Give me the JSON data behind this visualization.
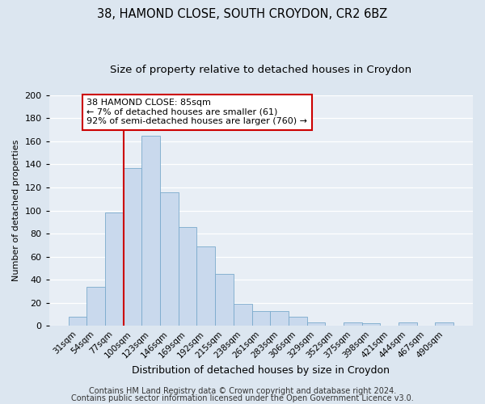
{
  "title": "38, HAMOND CLOSE, SOUTH CROYDON, CR2 6BZ",
  "subtitle": "Size of property relative to detached houses in Croydon",
  "xlabel": "Distribution of detached houses by size in Croydon",
  "ylabel": "Number of detached properties",
  "bar_labels": [
    "31sqm",
    "54sqm",
    "77sqm",
    "100sqm",
    "123sqm",
    "146sqm",
    "169sqm",
    "192sqm",
    "215sqm",
    "238sqm",
    "261sqm",
    "283sqm",
    "306sqm",
    "329sqm",
    "352sqm",
    "375sqm",
    "398sqm",
    "421sqm",
    "444sqm",
    "467sqm",
    "490sqm"
  ],
  "bar_values": [
    8,
    34,
    98,
    137,
    165,
    116,
    86,
    69,
    45,
    19,
    13,
    13,
    8,
    3,
    0,
    3,
    2,
    0,
    3,
    0,
    3
  ],
  "bar_color": "#c9d9ed",
  "bar_edge_color": "#7aaacc",
  "ylim": [
    0,
    200
  ],
  "yticks": [
    0,
    20,
    40,
    60,
    80,
    100,
    120,
    140,
    160,
    180,
    200
  ],
  "vline_color": "#cc0000",
  "annotation_box_text": "38 HAMOND CLOSE: 85sqm\n← 7% of detached houses are smaller (61)\n92% of semi-detached houses are larger (760) →",
  "annotation_box_color": "#ffffff",
  "annotation_box_edge_color": "#cc0000",
  "footer_line1": "Contains HM Land Registry data © Crown copyright and database right 2024.",
  "footer_line2": "Contains public sector information licensed under the Open Government Licence v3.0.",
  "bg_color": "#dce6f0",
  "plot_bg_color": "#e8eef5",
  "title_fontsize": 10.5,
  "subtitle_fontsize": 9.5,
  "ylabel_fontsize": 8,
  "xlabel_fontsize": 9,
  "footer_fontsize": 7
}
